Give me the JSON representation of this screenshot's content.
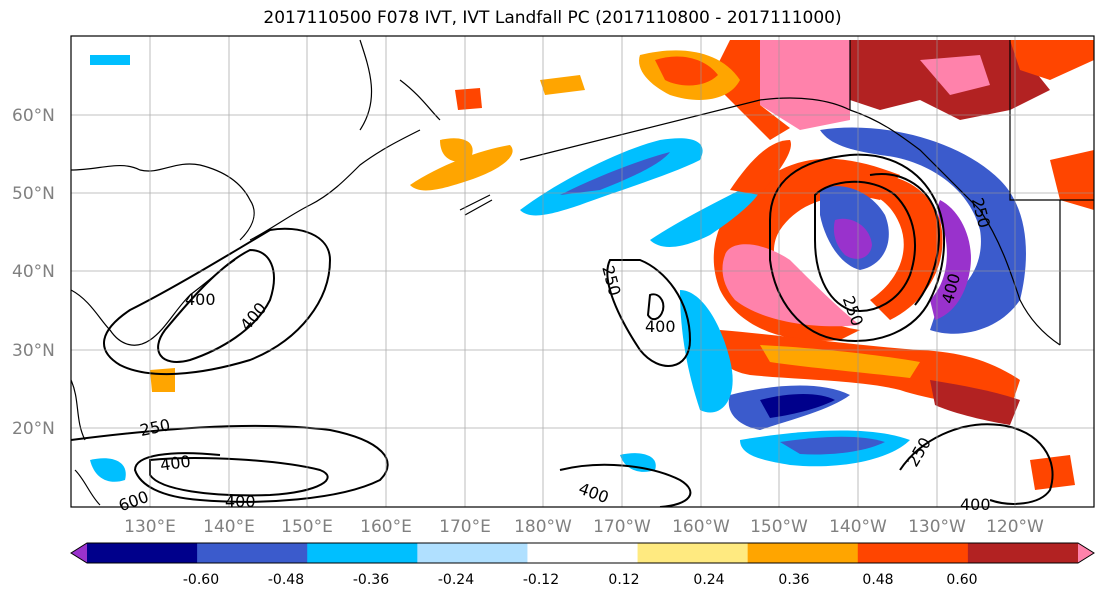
{
  "title": "2017110500 F078 IVT, IVT Landfall PC (2017110800 - 2017111000)",
  "lat_labels": [
    "60°N",
    "50°N",
    "40°N",
    "30°N",
    "20°N"
  ],
  "lon_labels": [
    "130°E",
    "140°E",
    "150°E",
    "160°E",
    "170°E",
    "180°W",
    "170°W",
    "160°W",
    "150°W",
    "140°W",
    "130°W",
    "120°W"
  ],
  "colorbar": {
    "colors": [
      "#9932cc",
      "#00008b",
      "#3b5bcc",
      "#00bfff",
      "#b0e0ff",
      "#ffffff",
      "#ffea80",
      "#ffa500",
      "#ff4500",
      "#b22222",
      "#ff82ab"
    ],
    "tick_labels": [
      "-0.60",
      "-0.48",
      "-0.36",
      "-0.24",
      "-0.12",
      "0.12",
      "0.24",
      "0.36",
      "0.48",
      "0.60"
    ]
  },
  "contour_labels": [
    "400",
    "400",
    "250",
    "400",
    "400",
    "600",
    "400",
    "250",
    "400",
    "400",
    "250",
    "250",
    "400",
    "250"
  ]
}
